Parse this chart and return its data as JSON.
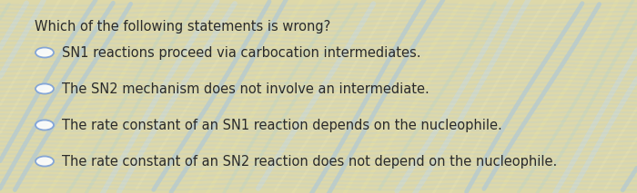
{
  "question": "Which of the following statements is wrong?",
  "options": [
    "SN1 reactions proceed via carbocation intermediates.",
    "The SN2 mechanism does not involve an intermediate.",
    "The rate constant of an SN1 reaction depends on the nucleophile.",
    "The rate constant of an SN2 reaction does not depend on the nucleophile."
  ],
  "question_fontsize": 10.5,
  "option_fontsize": 10.5,
  "question_color": "#2a2a2a",
  "option_color": "#2a2a2a",
  "circle_edge_color": "#7a9fd8",
  "circle_face_color": "#ffffff",
  "circle_inner_color": "#8ab4e8",
  "bg_base": "#ddd8aa",
  "wave_colors_blue": "#a8c8e8",
  "wave_colors_yellow": "#e8e0a0",
  "wave_colors_green": "#c8d8b0"
}
